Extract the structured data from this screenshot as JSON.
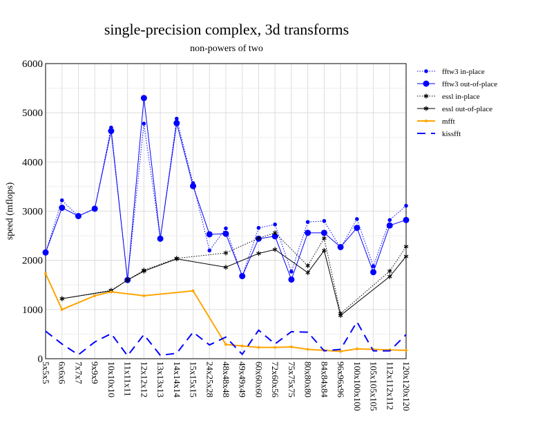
{
  "chart_data": {
    "type": "line",
    "title": "single-precision complex, 3d transforms",
    "subtitle": "non-powers of two",
    "xlabel": "",
    "ylabel": "speed (mflops)",
    "ylim": [
      0,
      6000
    ],
    "yticks": [
      "0",
      "1000",
      "2000",
      "3000",
      "4000",
      "5000",
      "6000"
    ],
    "grid": true,
    "legend_position": "outside-right",
    "categories": [
      "5x5x5",
      "6x6x6",
      "7x7x7",
      "9x9x9",
      "10x10x10",
      "11x11x11",
      "12x12x12",
      "13x13x13",
      "14x14x14",
      "15x15x15",
      "24x25x28",
      "48x48x48",
      "49x49x49",
      "60x60x60",
      "72x60x56",
      "75x75x75",
      "80x80x80",
      "84x84x84",
      "96x96x96",
      "100x100x100",
      "105x105x105",
      "112x112x112",
      "120x120x120"
    ],
    "series": [
      {
        "name": "fftw3 in-place",
        "color": "#0000ff",
        "style": "dotted",
        "marker": "smalldot",
        "values": [
          2160,
          3220,
          2900,
          3050,
          4700,
          1600,
          4780,
          2440,
          4880,
          3570,
          2200,
          2650,
          1680,
          2660,
          2730,
          1770,
          2780,
          2800,
          2250,
          2840,
          1880,
          2820,
          3110
        ]
      },
      {
        "name": "fftw3 out-of-place",
        "color": "#0000ff",
        "style": "solid",
        "marker": "bigdot",
        "values": [
          2160,
          3070,
          2900,
          3050,
          4630,
          1600,
          5300,
          2440,
          4790,
          3510,
          2530,
          2540,
          1680,
          2440,
          2490,
          1610,
          2560,
          2560,
          2270,
          2660,
          1760,
          2710,
          2820
        ]
      },
      {
        "name": "essl in-place",
        "color": "#000000",
        "style": "dotted",
        "marker": "star",
        "values": [
          null,
          1220,
          null,
          null,
          1390,
          1600,
          1800,
          null,
          2040,
          null,
          null,
          2150,
          null,
          2450,
          2560,
          null,
          1890,
          2450,
          920,
          null,
          null,
          1780,
          2280
        ]
      },
      {
        "name": "essl out-of-place",
        "color": "#000000",
        "style": "solid",
        "marker": "star",
        "values": [
          null,
          1220,
          null,
          null,
          1380,
          1600,
          1780,
          null,
          2030,
          null,
          null,
          1860,
          null,
          2140,
          2220,
          null,
          1750,
          2200,
          880,
          null,
          null,
          1670,
          2080
        ]
      },
      {
        "name": "mfft",
        "color": "#ffa500",
        "style": "thick",
        "marker": "smalldot",
        "values": [
          1730,
          1000,
          null,
          1280,
          1360,
          null,
          1280,
          null,
          null,
          1380,
          null,
          290,
          260,
          230,
          230,
          240,
          190,
          170,
          150,
          200,
          190,
          180,
          170
        ]
      },
      {
        "name": "kissfft",
        "color": "#0000ff",
        "style": "dashed",
        "marker": "none",
        "values": [
          560,
          300,
          80,
          340,
          510,
          60,
          490,
          70,
          110,
          540,
          280,
          440,
          90,
          580,
          300,
          550,
          540,
          160,
          190,
          750,
          160,
          160,
          490
        ]
      }
    ]
  }
}
